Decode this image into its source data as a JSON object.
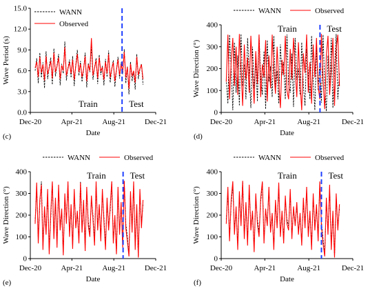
{
  "series_colors": {
    "WANN": "#000000",
    "Observed": "#ff0000",
    "split": "#1f3fff"
  },
  "chart_data": [
    {
      "panel": "(c)",
      "type": "line",
      "xlabel": "Date",
      "ylabel": "Wave Period (s)",
      "ylim": [
        0,
        15
      ],
      "yticks": [
        "0.0",
        "3.0",
        "6.0",
        "9.0",
        "12.0",
        "15.0"
      ],
      "ytick_values": [
        0,
        3,
        6,
        9,
        12,
        15
      ],
      "xlim": [
        "2020-12-01",
        "2021-12-01"
      ],
      "xticks": [
        "Dec-20",
        "Apr-21",
        "Aug-21",
        "Dec-21"
      ],
      "xtick_dates": [
        "2020-12-01",
        "2021-04-01",
        "2021-08-01",
        "2021-12-01"
      ],
      "split_date": "2021-08-25",
      "region_labels": [
        "Train",
        "Test"
      ],
      "legend": {
        "position": "top-left",
        "entries": [
          "WANN",
          "Observed"
        ]
      },
      "series": [
        {
          "name": "WANN",
          "style": "dashed",
          "x_start": "2020-12-15",
          "x_end": "2021-10-25",
          "values": [
            6.0,
            7.8,
            4.2,
            8.6,
            5.0,
            7.2,
            3.5,
            8.8,
            4.8,
            6.6,
            7.9,
            4.0,
            9.2,
            5.2,
            6.8,
            8.4,
            3.9,
            7.0,
            5.6,
            10.2,
            4.6,
            6.4,
            7.6,
            5.0,
            8.1,
            3.8,
            6.9,
            9.0,
            5.3,
            7.4,
            4.4,
            6.2,
            8.6,
            3.6,
            7.1,
            5.8,
            9.6,
            4.7,
            6.5,
            7.8,
            4.1,
            8.3,
            5.4,
            6.7,
            3.9,
            7.7,
            5.1,
            8.9,
            4.3,
            6.3,
            7.5,
            3.7,
            6.1,
            8.0,
            4.9,
            7.2,
            5.5,
            9.1,
            4.2,
            6.6,
            2.6,
            7.3,
            4.5,
            5.9,
            3.3,
            8.4,
            4.8,
            6.2,
            7.0,
            4.0
          ]
        },
        {
          "name": "Observed",
          "style": "solid",
          "x_start": "2020-12-15",
          "x_end": "2021-10-25",
          "values": [
            6.4,
            7.3,
            5.1,
            8.0,
            5.7,
            6.9,
            4.6,
            8.1,
            5.5,
            6.4,
            7.4,
            4.9,
            8.6,
            5.8,
            6.6,
            7.9,
            4.8,
            6.8,
            6.0,
            9.4,
            5.3,
            6.3,
            7.2,
            5.6,
            7.6,
            4.7,
            6.7,
            8.4,
            5.8,
            7.0,
            5.1,
            6.2,
            8.1,
            4.5,
            6.9,
            6.0,
            10.7,
            5.3,
            6.4,
            7.5,
            4.9,
            7.9,
            5.9,
            6.5,
            4.7,
            7.3,
            5.6,
            8.4,
            5.0,
            6.3,
            7.2,
            4.5,
            6.1,
            7.6,
            5.4,
            6.9,
            5.9,
            8.7,
            5.0,
            6.5,
            3.4,
            7.0,
            5.2,
            6.0,
            4.3,
            8.0,
            5.4,
            6.3,
            6.9,
            4.8
          ]
        }
      ]
    },
    {
      "panel": "(d)",
      "type": "line",
      "xlabel": "Date",
      "ylabel": "Wave Direction (°)",
      "ylim": [
        0,
        400
      ],
      "yticks": [
        "0",
        "100",
        "200",
        "300",
        "400"
      ],
      "ytick_values": [
        0,
        100,
        200,
        300,
        400
      ],
      "xlim": [
        "2020-12-01",
        "2021-12-01"
      ],
      "xticks": [
        "Dec-20",
        "Apr-21",
        "Aug-21",
        "Dec-21"
      ],
      "xtick_dates": [
        "2020-12-01",
        "2021-04-01",
        "2021-08-01",
        "2021-12-01"
      ],
      "split_date": "2021-09-01",
      "region_labels": [
        "Train",
        "Test"
      ],
      "legend": {
        "position": "top",
        "entries": [
          "WANN",
          "Observed"
        ]
      },
      "series": [
        {
          "name": "WANN",
          "style": "dashed",
          "x_start": "2020-12-15",
          "x_end": "2021-10-25",
          "values": [
            150,
            40,
            355,
            200,
            10,
            320,
            90,
            260,
            30,
            358,
            120,
            220,
            60,
            340,
            180,
            20,
            300,
            110,
            240,
            50,
            355,
            160,
            80,
            280,
            15,
            330,
            140,
            210,
            70,
            350,
            100,
            190,
            40,
            310,
            170,
            230,
            60,
            356,
            130,
            90,
            270,
            25,
            340,
            150,
            200,
            80,
            320,
            120,
            30,
            290,
            180,
            60,
            350,
            140,
            10,
            300,
            100,
            220,
            45,
            355,
            130,
            5,
            260,
            90,
            340,
            20,
            200,
            358,
            60,
            180
          ]
        },
        {
          "name": "Observed",
          "style": "solid",
          "x_start": "2020-12-15",
          "x_end": "2021-10-25",
          "values": [
            140,
            355,
            60,
            230,
            340,
            120,
            300,
            80,
            358,
            200,
            30,
            310,
            150,
            250,
            90,
            350,
            180,
            40,
            280,
            130,
            356,
            70,
            220,
            160,
            330,
            50,
            260,
            110,
            355,
            190,
            85,
            300,
            140,
            20,
            240,
            170,
            350,
            100,
            60,
            290,
            150,
            340,
            200,
            70,
            320,
            130,
            10,
            270,
            180,
            356,
            90,
            230,
            40,
            310,
            160,
            340,
            120,
            60,
            358,
            150,
            15,
            260,
            350,
            80,
            200,
            340,
            30,
            290,
            355,
            120
          ]
        }
      ]
    },
    {
      "panel": "(e)",
      "type": "line",
      "xlabel": "Date",
      "ylabel": "Wave Direction (°)",
      "ylim": [
        0,
        400
      ],
      "yticks": [
        "0",
        "100",
        "200",
        "300",
        "400"
      ],
      "ytick_values": [
        0,
        100,
        200,
        300,
        400
      ],
      "xlim": [
        "2020-12-01",
        "2021-12-01"
      ],
      "xticks": [
        "Dec-20",
        "Apr-21",
        "Aug-21",
        "Dec-21"
      ],
      "xtick_dates": [
        "2020-12-01",
        "2021-04-01",
        "2021-08-01",
        "2021-12-01"
      ],
      "split_date": "2021-08-28",
      "region_labels": [
        "Train",
        "Test"
      ],
      "legend": {
        "position": "top",
        "entries": [
          "WANN",
          "Observed"
        ]
      },
      "series": [
        {
          "name": "WANN",
          "style": "dashed",
          "x_start": "2020-12-15",
          "x_end": "2021-10-25",
          "values": [
            170,
            330,
            90,
            250,
            355,
            60,
            220,
            130,
            300,
            40,
            190,
            350,
            110,
            260,
            70,
            320,
            150,
            210,
            30,
            280,
            180,
            340,
            120,
            230,
            60,
            300,
            160,
            200,
            90,
            355,
            140,
            250,
            50,
            310,
            170,
            120,
            270,
            200,
            80,
            340,
            150,
            230,
            100,
            300,
            190,
            60,
            260,
            150,
            220,
            350,
            90,
            180,
            30,
            310,
            130,
            240,
            70,
            355,
            160,
            100,
            20,
            290,
            140,
            340,
            60,
            230,
            10,
            300,
            160,
            250
          ]
        },
        {
          "name": "Observed",
          "style": "solid",
          "x_start": "2020-12-15",
          "x_end": "2021-10-25",
          "values": [
            160,
            350,
            70,
            270,
            340,
            40,
            240,
            110,
            320,
            20,
            210,
            355,
            90,
            280,
            50,
            340,
            130,
            230,
            15,
            300,
            160,
            355,
            100,
            250,
            45,
            320,
            140,
            220,
            70,
            350,
            120,
            270,
            35,
            330,
            150,
            100,
            290,
            180,
            60,
            355,
            130,
            250,
            80,
            320,
            170,
            40,
            280,
            130,
            240,
            356,
            70,
            200,
            20,
            330,
            110,
            260,
            50,
            358,
            140,
            80,
            10,
            310,
            120,
            355,
            40,
            250,
            5,
            320,
            140,
            270
          ]
        }
      ]
    },
    {
      "panel": "(f)",
      "type": "line",
      "xlabel": "Date",
      "ylabel": "Wave Direction (°)",
      "ylim": [
        0,
        400
      ],
      "yticks": [
        "0",
        "100",
        "200",
        "300",
        "400"
      ],
      "ytick_values": [
        0,
        100,
        200,
        300,
        400
      ],
      "xlim": [
        "2020-12-01",
        "2021-12-01"
      ],
      "xticks": [
        "Dec-20",
        "Apr-21",
        "Aug-21",
        "Dec-21"
      ],
      "xtick_dates": [
        "2020-12-01",
        "2021-04-01",
        "2021-08-01",
        "2021-12-01"
      ],
      "split_date": "2021-09-05",
      "region_labels": [
        "Train",
        "Test"
      ],
      "legend": {
        "position": "top",
        "entries": [
          "WANN",
          "Observed"
        ]
      },
      "series": [
        {
          "name": "WANN",
          "style": "dashed",
          "x_start": "2020-12-15",
          "x_end": "2021-10-25",
          "values": [
            180,
            300,
            100,
            250,
            340,
            130,
            220,
            60,
            290,
            170,
            355,
            110,
            240,
            80,
            320,
            150,
            200,
            50,
            280,
            180,
            120,
            260,
            350,
            90,
            210,
            170,
            310,
            140,
            190,
            60,
            250,
            160,
            330,
            120,
            200,
            90,
            270,
            180,
            150,
            300,
            110,
            220,
            170,
            240,
            130,
            190,
            80,
            260,
            160,
            310,
            120,
            200,
            60,
            280,
            150,
            230,
            100,
            340,
            170,
            90,
            20,
            260,
            130,
            320,
            60,
            200,
            10,
            280,
            150,
            230
          ]
        },
        {
          "name": "Observed",
          "style": "solid",
          "x_start": "2020-12-15",
          "x_end": "2021-10-25",
          "values": [
            160,
            330,
            80,
            270,
            356,
            110,
            240,
            40,
            310,
            150,
            358,
            90,
            260,
            60,
            340,
            130,
            220,
            30,
            300,
            160,
            100,
            280,
            355,
            70,
            230,
            150,
            330,
            120,
            210,
            40,
            270,
            140,
            350,
            100,
            220,
            70,
            290,
            160,
            130,
            320,
            90,
            240,
            150,
            260,
            110,
            210,
            60,
            280,
            140,
            330,
            100,
            220,
            40,
            300,
            130,
            250,
            80,
            355,
            150,
            70,
            10,
            280,
            110,
            340,
            40,
            220,
            5,
            300,
            130,
            250
          ]
        }
      ]
    }
  ]
}
